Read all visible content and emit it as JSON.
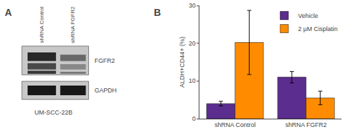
{
  "chart_data": [
    {
      "type": "blot",
      "title": "A",
      "categories": [
        "shRNA Control",
        "shRNA FGFR2"
      ],
      "color": "#C8C8C8",
      "series": [
        {
          "name": "FGFR2",
          "colors": [
            [
              "#282828",
              "#484848",
              "#383838"
            ],
            [
              "#686868",
              "#888888",
              "#787878"
            ]
          ]
        },
        {
          "name": "GAPDH",
          "colors": [
            "#181818",
            "#181818"
          ]
        }
      ],
      "annotations": [
        "UM-SCC-22B"
      ],
      "tick_labels": false
    },
    {
      "type": "bar",
      "title": "B",
      "categories": [
        "shRNA Control",
        "shRNA FGFR2"
      ],
      "series": [
        {
          "name": "Vehicle",
          "color": "#5B2D8E",
          "values": [
            4.0,
            11.0
          ],
          "errors": [
            0.6,
            1.5
          ]
        },
        {
          "name": "2 μM Cisplatin",
          "color": "#FF8C00",
          "values": [
            20.2,
            5.5
          ],
          "errors": [
            8.5,
            1.8
          ]
        }
      ],
      "ylabel": "ALDH+CD44+ (%)",
      "ylim": [
        0,
        30
      ],
      "yticks": [
        0,
        10,
        20,
        30
      ],
      "legend": "upper right",
      "grid": false
    }
  ]
}
